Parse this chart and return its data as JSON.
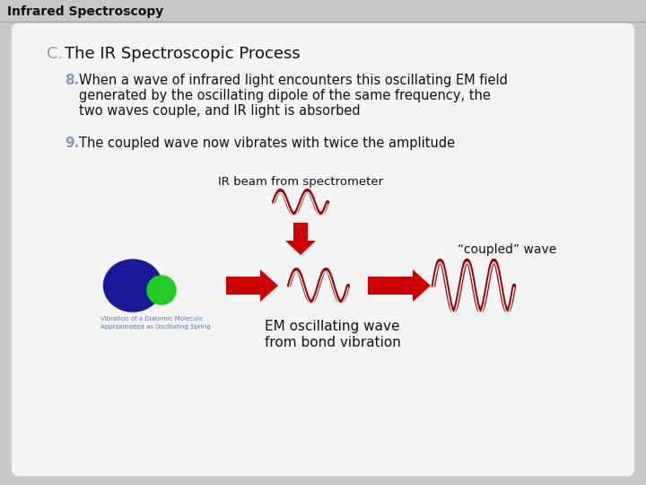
{
  "title": "Infrared Spectroscopy",
  "slide_bg": "#c8c8c8",
  "content_bg": "#f5f5f5",
  "heading_c": "C.",
  "heading_text": "The IR Spectroscopic Process",
  "heading_color": "#8899bb",
  "item8_num": "8.",
  "item8_line1": "When a wave of infrared light encounters this oscillating EM field",
  "item8_line2": "generated by the oscillating dipole of the same frequency, the",
  "item8_line3": "two waves couple, and IR light is absorbed",
  "item9_num": "9.",
  "item9_text": "The coupled wave now vibrates with twice the amplitude",
  "label_ir": "IR beam from spectrometer",
  "label_coupled": "“coupled” wave",
  "label_em_line1": "EM oscillating wave",
  "label_em_line2": "from bond vibration",
  "arrow_color": "#cc0000",
  "wave_color": "#990000",
  "text_color": "#111111",
  "molecule_blue": "#1a1a99",
  "molecule_green": "#22cc22",
  "mol_label_color": "#5577bb",
  "mol_label1": "Vibration of a Diatomic Molecule",
  "mol_label2": "Approximated as Oscillating Spring"
}
